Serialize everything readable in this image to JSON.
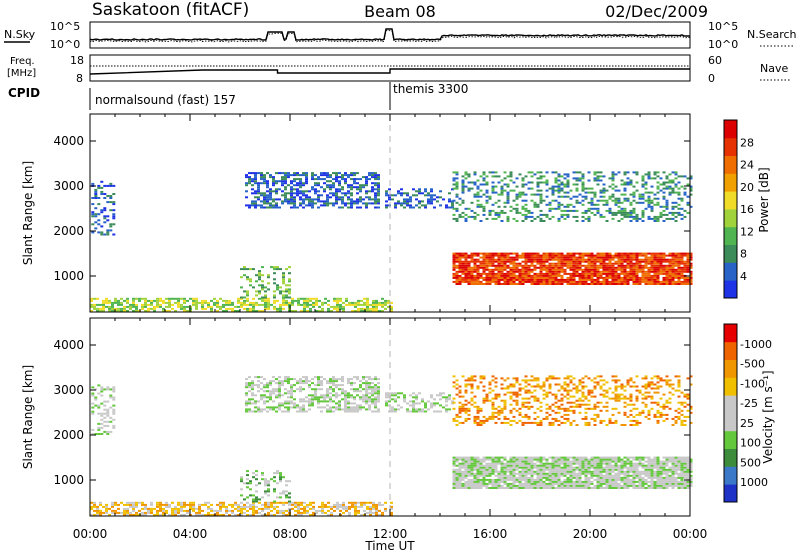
{
  "header": {
    "station": "Saskatoon (fitACF)",
    "beam": "Beam 08",
    "date": "02/Dec/2009"
  },
  "top_panels": {
    "nsky_label": "N.Sky",
    "nsky_ticks": [
      "10^5",
      "10^0"
    ],
    "nsearch_label": "N.Search",
    "nsearch_ticks": [
      "10^5",
      "10^0"
    ],
    "freq_label_1": "Freq.",
    "freq_label_2": "[MHz]",
    "freq_ticks": [
      "18",
      "8"
    ],
    "nave_label": "Nave",
    "nave_ticks": [
      "60",
      "0"
    ],
    "cpid_label": "CPID",
    "cpid_modes": [
      {
        "name": "normalsound (fast) 157",
        "start_hour": 0
      },
      {
        "name": "themis 3300",
        "start_hour": 12
      }
    ]
  },
  "chart_data": [
    {
      "type": "heatmap",
      "title": "",
      "xlabel": "Time UT",
      "ylabel": "Slant Range [km]",
      "xlim_hours": [
        0,
        24
      ],
      "ylim": [
        200,
        4600
      ],
      "x_ticks": [
        "00:00",
        "04:00",
        "08:00",
        "12:00",
        "16:00",
        "20:00",
        "00:00"
      ],
      "y_ticks": [
        1000,
        2000,
        3000,
        4000
      ],
      "colorbar": {
        "label": "Power [dB]",
        "ticks": [
          "4",
          "8",
          "12",
          "16",
          "20",
          "24",
          "28"
        ],
        "colors": [
          "#1e32e6",
          "#2864c8",
          "#3c8c5a",
          "#50b450",
          "#a0d23c",
          "#f0dc28",
          "#f0a000",
          "#f06e00",
          "#e63200",
          "#dc0000"
        ]
      },
      "regions": [
        {
          "t0": 0.05,
          "t1": 1.0,
          "r0": 1900,
          "r1": 3100,
          "level": 1,
          "density": 0.35
        },
        {
          "t0": 6.2,
          "t1": 11.5,
          "r0": 2500,
          "r1": 3300,
          "level": 1,
          "density": 0.55
        },
        {
          "t0": 11.8,
          "t1": 14.5,
          "r0": 2500,
          "r1": 2950,
          "level": 1,
          "density": 0.45
        },
        {
          "t0": 14.5,
          "t1": 24.0,
          "r0": 2200,
          "r1": 3300,
          "level": 2,
          "density": 0.35
        },
        {
          "t0": 14.5,
          "t1": 24.0,
          "r0": 800,
          "r1": 1500,
          "level": 8,
          "density": 0.9
        },
        {
          "t0": 0.0,
          "t1": 12.0,
          "r0": 200,
          "r1": 500,
          "level": 4,
          "density": 0.6
        },
        {
          "t0": 6.0,
          "t1": 8.0,
          "r0": 500,
          "r1": 1200,
          "level": 3,
          "density": 0.3
        }
      ]
    },
    {
      "type": "heatmap",
      "title": "",
      "xlabel": "Time UT",
      "ylabel": "Slant Range [km]",
      "xlim_hours": [
        0,
        24
      ],
      "ylim": [
        200,
        4600
      ],
      "x_ticks": [
        "00:00",
        "04:00",
        "08:00",
        "12:00",
        "16:00",
        "20:00",
        "00:00"
      ],
      "y_ticks": [
        1000,
        2000,
        3000,
        4000
      ],
      "colorbar": {
        "label": "Velocity [m s⁻¹]",
        "ticks": [
          "1000",
          "500",
          "100",
          "25",
          "-25",
          "-100",
          "-500",
          "-1000"
        ],
        "colors": [
          "#1e32c8",
          "#3c78c8",
          "#3c8c3c",
          "#64c83c",
          "#c8c8c8",
          "#c8c8c8",
          "#f0c000",
          "#f09600",
          "#f06400",
          "#e60000"
        ]
      },
      "regions": [
        {
          "t0": 0.05,
          "t1": 1.0,
          "r0": 2000,
          "r1": 3100,
          "level": 4,
          "density": 0.35
        },
        {
          "t0": 6.2,
          "t1": 11.5,
          "r0": 2500,
          "r1": 3300,
          "level": 4,
          "density": 0.55
        },
        {
          "t0": 11.8,
          "t1": 14.5,
          "r0": 2500,
          "r1": 2950,
          "level": 4,
          "density": 0.45
        },
        {
          "t0": 14.5,
          "t1": 24.0,
          "r0": 800,
          "r1": 1500,
          "level": 4,
          "density": 0.9
        },
        {
          "t0": 14.5,
          "t1": 24.0,
          "r0": 2200,
          "r1": 3300,
          "level": 7,
          "density": 0.35
        },
        {
          "t0": 0.0,
          "t1": 12.0,
          "r0": 200,
          "r1": 500,
          "level": 6,
          "density": 0.6
        },
        {
          "t0": 6.0,
          "t1": 8.0,
          "r0": 500,
          "r1": 1200,
          "level": 3,
          "density": 0.3
        }
      ]
    }
  ]
}
